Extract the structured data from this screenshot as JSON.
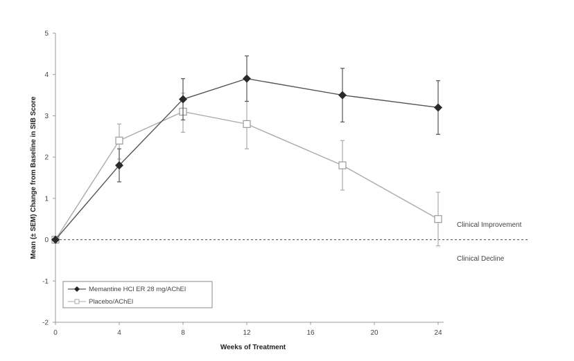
{
  "chart_data": {
    "type": "line",
    "xlabel": "Weeks of Treatment",
    "ylabel": "Mean (± SEM) Change from Baseline in SIB Score",
    "xlim": [
      0,
      24
    ],
    "ylim": [
      -2,
      5
    ],
    "xticks": [
      0,
      4,
      8,
      12,
      16,
      20,
      24
    ],
    "yticks": [
      -2,
      -1,
      0,
      1,
      2,
      3,
      4,
      5
    ],
    "grid": false,
    "legend_position": "bottom-left",
    "reference_line": {
      "y": 0,
      "style": "dashed"
    },
    "annotations": [
      "Clinical Improvement",
      "Clinical Decline"
    ],
    "series": [
      {
        "name": "Memantine HCl ER 28 mg/AChEI",
        "marker": "filled-diamond",
        "color": "#555555",
        "x": [
          0,
          4,
          8,
          12,
          18,
          24
        ],
        "y": [
          0,
          1.8,
          3.4,
          3.9,
          3.5,
          3.2
        ],
        "err_low": [
          0,
          1.4,
          2.9,
          3.35,
          2.85,
          2.55
        ],
        "err_high": [
          0,
          2.2,
          3.9,
          4.45,
          4.15,
          3.85
        ]
      },
      {
        "name": "Placebo/AChEI",
        "marker": "open-square",
        "color": "#aaaaaa",
        "x": [
          0,
          4,
          8,
          12,
          18,
          24
        ],
        "y": [
          0,
          2.4,
          3.1,
          2.8,
          1.8,
          0.5
        ],
        "err_low": [
          0,
          1.95,
          2.6,
          2.2,
          1.2,
          -0.15
        ],
        "err_high": [
          0,
          2.8,
          3.55,
          3.35,
          2.4,
          1.15
        ]
      }
    ]
  }
}
